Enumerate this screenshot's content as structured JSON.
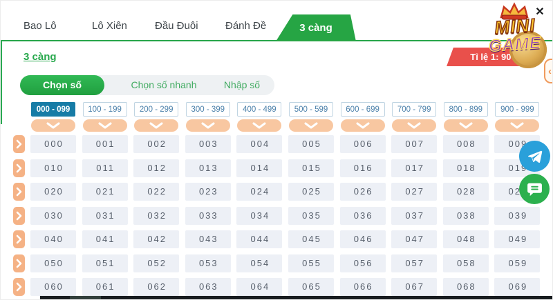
{
  "header": {
    "tabs": [
      {
        "label": "Bao Lô",
        "active": false
      },
      {
        "label": "Lô Xiên",
        "active": false
      },
      {
        "label": "Đầu Đuôi",
        "active": false
      },
      {
        "label": "Đánh Đề",
        "active": false
      },
      {
        "label": "3 càng",
        "active": true
      }
    ],
    "close_icon": "✕"
  },
  "logo": {
    "line1": "MINI",
    "line2": "GAME",
    "crown_icon": "crown"
  },
  "content": {
    "title": "3 càng",
    "rate_badge": "Tỉ lệ 1: 900",
    "subtabs": [
      {
        "label": "Chọn số",
        "active": true
      },
      {
        "label": "Chọn số nhanh",
        "active": false
      },
      {
        "label": "Nhập số",
        "active": false
      }
    ],
    "ranges": [
      {
        "label": "000 - 099",
        "active": true
      },
      {
        "label": "100 - 199",
        "active": false
      },
      {
        "label": "200 - 299",
        "active": false
      },
      {
        "label": "300 - 399",
        "active": false
      },
      {
        "label": "400 - 499",
        "active": false
      },
      {
        "label": "500 - 599",
        "active": false
      },
      {
        "label": "600 - 699",
        "active": false
      },
      {
        "label": "700 - 799",
        "active": false
      },
      {
        "label": "800 - 899",
        "active": false
      },
      {
        "label": "900 - 999",
        "active": false
      }
    ],
    "grid_rows": [
      [
        "000",
        "001",
        "002",
        "003",
        "004",
        "005",
        "006",
        "007",
        "008",
        "009"
      ],
      [
        "010",
        "011",
        "012",
        "013",
        "014",
        "015",
        "016",
        "017",
        "018",
        "019"
      ],
      [
        "020",
        "021",
        "022",
        "023",
        "024",
        "025",
        "026",
        "027",
        "028",
        "029"
      ],
      [
        "030",
        "031",
        "032",
        "033",
        "034",
        "035",
        "036",
        "037",
        "038",
        "039"
      ],
      [
        "040",
        "041",
        "042",
        "043",
        "044",
        "045",
        "046",
        "047",
        "048",
        "049"
      ],
      [
        "050",
        "051",
        "052",
        "053",
        "054",
        "055",
        "056",
        "057",
        "058",
        "059"
      ],
      [
        "060",
        "061",
        "062",
        "063",
        "064",
        "065",
        "066",
        "067",
        "068",
        "069"
      ]
    ]
  },
  "icons": {
    "close": "✕",
    "collapse_panel": "‹",
    "row_expand": "chevron-right",
    "column_expand": "chevron-down",
    "telegram": "paper-plane",
    "chat": "speech-bubble"
  },
  "colors": {
    "primary_green": "#26a544",
    "active_blue": "#177ca6",
    "peach": "#f8c7a1",
    "badge_red": "#e9504b",
    "telegram_blue": "#2aa0da",
    "chat_green": "#2cb04e"
  }
}
